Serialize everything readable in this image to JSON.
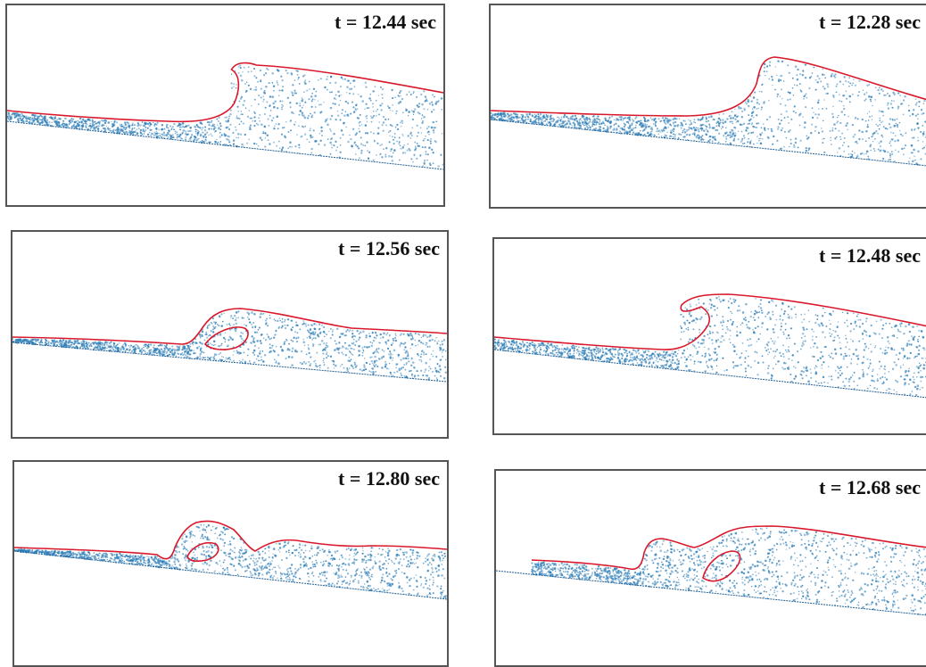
{
  "colors": {
    "particles": "#2f7fb8",
    "interface": "#d9182b",
    "bed": "#1f5f96",
    "frame": "#555555"
  },
  "panels": [
    {
      "label": "t = 12.44 sec"
    },
    {
      "label": "t = 12.28 sec"
    },
    {
      "label": "t = 12.56 sec"
    },
    {
      "label": "t = 12.48 sec"
    },
    {
      "label": "t = 12.80 sec"
    },
    {
      "label": "t = 12.68 sec"
    }
  ]
}
